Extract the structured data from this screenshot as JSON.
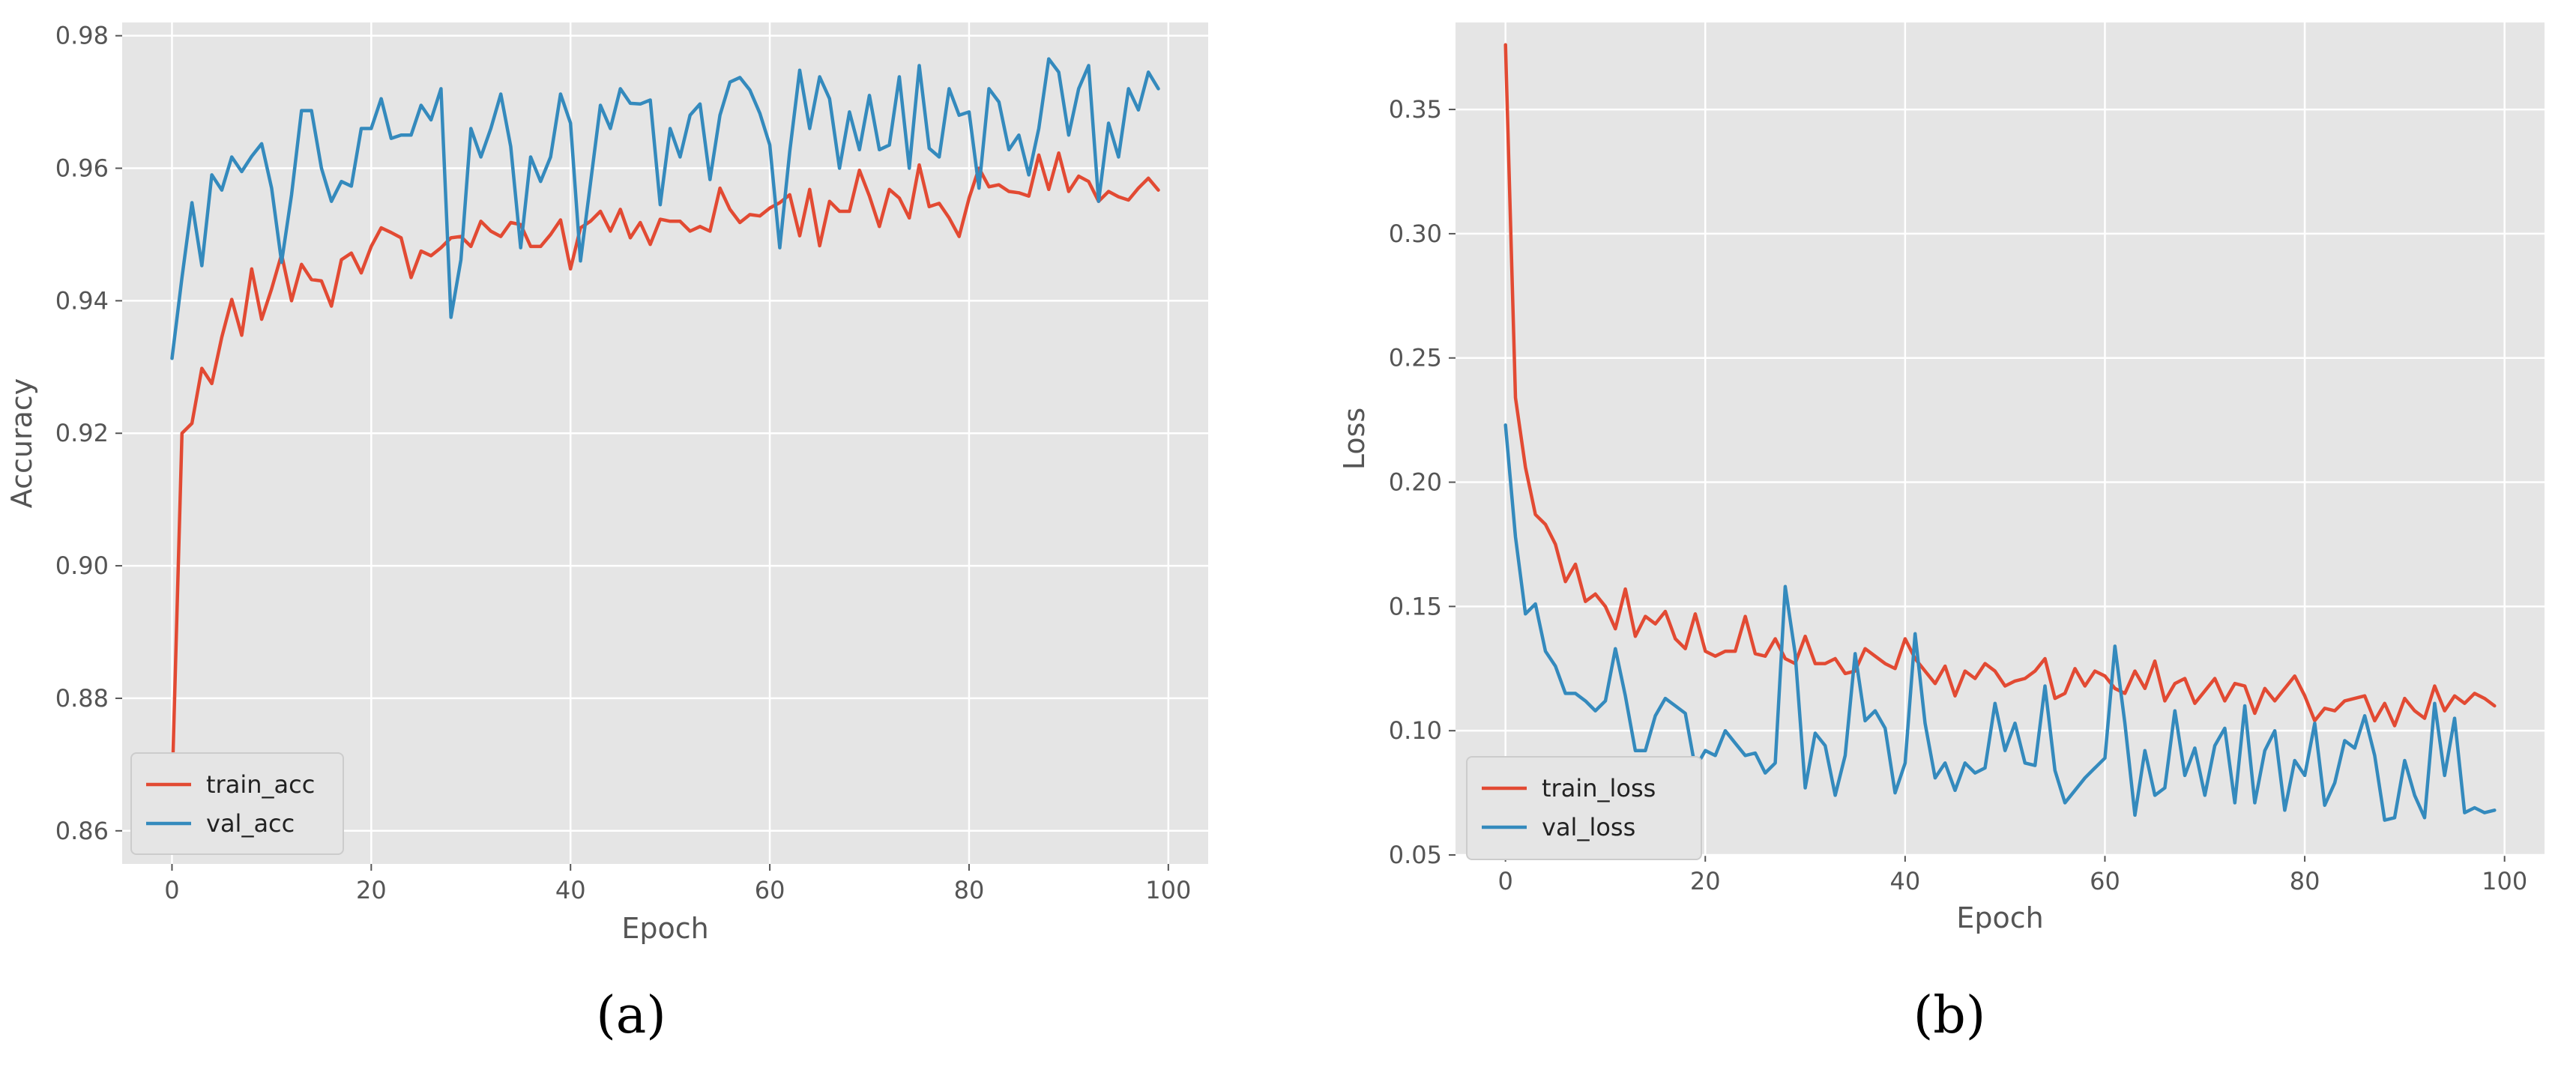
{
  "chart_data": [
    {
      "type": "line",
      "caption": "(a)",
      "xlabel": "Epoch",
      "ylabel": "Accuracy",
      "xlim": [
        -5,
        104
      ],
      "ylim": [
        0.855,
        0.982
      ],
      "xticks": [
        0,
        20,
        40,
        60,
        80,
        100
      ],
      "yticks": [
        0.86,
        0.88,
        0.9,
        0.92,
        0.94,
        0.96,
        0.98
      ],
      "ytick_labels": [
        "0.86",
        "0.88",
        "0.90",
        "0.92",
        "0.94",
        "0.96",
        "0.98"
      ],
      "grid": true,
      "legend_position": "lower-left",
      "x": [
        0,
        1,
        2,
        3,
        4,
        5,
        6,
        7,
        8,
        9,
        10,
        11,
        12,
        13,
        14,
        15,
        16,
        17,
        18,
        19,
        20,
        21,
        22,
        23,
        24,
        25,
        26,
        27,
        28,
        29,
        30,
        31,
        32,
        33,
        34,
        35,
        36,
        37,
        38,
        39,
        40,
        41,
        42,
        43,
        44,
        45,
        46,
        47,
        48,
        49,
        50,
        51,
        52,
        53,
        54,
        55,
        56,
        57,
        58,
        59,
        60,
        61,
        62,
        63,
        64,
        65,
        66,
        67,
        68,
        69,
        70,
        71,
        72,
        73,
        74,
        75,
        76,
        77,
        78,
        79,
        80,
        81,
        82,
        83,
        84,
        85,
        86,
        87,
        88,
        89,
        90,
        91,
        92,
        93,
        94,
        95,
        96,
        97,
        98,
        99
      ],
      "series": [
        {
          "name": "train_acc",
          "color": "#E24A33",
          "values": [
            0.866,
            0.92,
            0.9215,
            0.9298,
            0.9275,
            0.9345,
            0.9402,
            0.9348,
            0.9448,
            0.9372,
            0.9418,
            0.947,
            0.94,
            0.9455,
            0.9432,
            0.943,
            0.9392,
            0.9462,
            0.9472,
            0.9442,
            0.9482,
            0.951,
            0.9503,
            0.9495,
            0.9435,
            0.9475,
            0.9468,
            0.948,
            0.9495,
            0.9497,
            0.9482,
            0.952,
            0.9505,
            0.9497,
            0.9518,
            0.9515,
            0.9482,
            0.9482,
            0.95,
            0.9522,
            0.9448,
            0.951,
            0.952,
            0.9535,
            0.9505,
            0.9538,
            0.9495,
            0.9518,
            0.9485,
            0.9523,
            0.952,
            0.952,
            0.9505,
            0.9512,
            0.9505,
            0.957,
            0.9538,
            0.9518,
            0.953,
            0.9528,
            0.954,
            0.9548,
            0.956,
            0.9498,
            0.9568,
            0.9483,
            0.955,
            0.9535,
            0.9535,
            0.9597,
            0.9558,
            0.9512,
            0.9568,
            0.9555,
            0.9525,
            0.9605,
            0.9542,
            0.9547,
            0.9525,
            0.9497,
            0.9555,
            0.96,
            0.9572,
            0.9575,
            0.9565,
            0.9563,
            0.9558,
            0.962,
            0.9568,
            0.9623,
            0.9565,
            0.9588,
            0.958,
            0.955,
            0.9565,
            0.9557,
            0.9552,
            0.957,
            0.9585,
            0.9567
          ]
        },
        {
          "name": "val_acc",
          "color": "#348ABD",
          "values": [
            0.9313,
            0.9435,
            0.9548,
            0.9453,
            0.959,
            0.9567,
            0.9617,
            0.9595,
            0.9618,
            0.9637,
            0.957,
            0.9458,
            0.956,
            0.9687,
            0.9687,
            0.96,
            0.955,
            0.958,
            0.9573,
            0.966,
            0.966,
            0.9705,
            0.9645,
            0.965,
            0.965,
            0.9695,
            0.9673,
            0.972,
            0.9375,
            0.9462,
            0.966,
            0.9617,
            0.966,
            0.9712,
            0.9633,
            0.948,
            0.9617,
            0.958,
            0.9617,
            0.9712,
            0.9668,
            0.946,
            0.9577,
            0.9695,
            0.966,
            0.972,
            0.9698,
            0.9697,
            0.9703,
            0.9545,
            0.966,
            0.9617,
            0.968,
            0.9697,
            0.9583,
            0.968,
            0.973,
            0.9737,
            0.9718,
            0.9683,
            0.9635,
            0.948,
            0.9625,
            0.9748,
            0.966,
            0.9738,
            0.9705,
            0.96,
            0.9685,
            0.9628,
            0.971,
            0.9628,
            0.9635,
            0.9738,
            0.96,
            0.9755,
            0.963,
            0.9617,
            0.972,
            0.968,
            0.9685,
            0.957,
            0.972,
            0.97,
            0.9628,
            0.965,
            0.959,
            0.966,
            0.9765,
            0.9745,
            0.965,
            0.972,
            0.9755,
            0.955,
            0.9668,
            0.9617,
            0.972,
            0.9688,
            0.9745,
            0.972
          ]
        }
      ]
    },
    {
      "type": "line",
      "caption": "(b)",
      "xlabel": "Epoch",
      "ylabel": "Loss",
      "xlim": [
        -5,
        104
      ],
      "ylim": [
        0.05,
        0.385
      ],
      "xticks": [
        0,
        20,
        40,
        60,
        80,
        100
      ],
      "yticks": [
        0.05,
        0.1,
        0.15,
        0.2,
        0.25,
        0.3,
        0.35
      ],
      "ytick_labels": [
        "0.05",
        "0.10",
        "0.15",
        "0.20",
        "0.25",
        "0.30",
        "0.35"
      ],
      "grid": true,
      "legend_position": "lower-left",
      "x": [
        0,
        1,
        2,
        3,
        4,
        5,
        6,
        7,
        8,
        9,
        10,
        11,
        12,
        13,
        14,
        15,
        16,
        17,
        18,
        19,
        20,
        21,
        22,
        23,
        24,
        25,
        26,
        27,
        28,
        29,
        30,
        31,
        32,
        33,
        34,
        35,
        36,
        37,
        38,
        39,
        40,
        41,
        42,
        43,
        44,
        45,
        46,
        47,
        48,
        49,
        50,
        51,
        52,
        53,
        54,
        55,
        56,
        57,
        58,
        59,
        60,
        61,
        62,
        63,
        64,
        65,
        66,
        67,
        68,
        69,
        70,
        71,
        72,
        73,
        74,
        75,
        76,
        77,
        78,
        79,
        80,
        81,
        82,
        83,
        84,
        85,
        86,
        87,
        88,
        89,
        90,
        91,
        92,
        93,
        94,
        95,
        96,
        97,
        98,
        99
      ],
      "series": [
        {
          "name": "train_loss",
          "color": "#E24A33",
          "values": [
            0.376,
            0.234,
            0.206,
            0.187,
            0.183,
            0.175,
            0.16,
            0.167,
            0.152,
            0.155,
            0.15,
            0.141,
            0.157,
            0.138,
            0.146,
            0.143,
            0.148,
            0.137,
            0.133,
            0.147,
            0.132,
            0.13,
            0.132,
            0.132,
            0.146,
            0.131,
            0.13,
            0.137,
            0.129,
            0.127,
            0.138,
            0.127,
            0.127,
            0.129,
            0.123,
            0.124,
            0.133,
            0.13,
            0.127,
            0.125,
            0.137,
            0.129,
            0.124,
            0.119,
            0.126,
            0.114,
            0.124,
            0.121,
            0.127,
            0.124,
            0.118,
            0.12,
            0.121,
            0.124,
            0.129,
            0.113,
            0.115,
            0.125,
            0.118,
            0.124,
            0.122,
            0.117,
            0.115,
            0.124,
            0.117,
            0.128,
            0.112,
            0.119,
            0.121,
            0.111,
            0.116,
            0.121,
            0.112,
            0.119,
            0.118,
            0.107,
            0.117,
            0.112,
            0.117,
            0.122,
            0.114,
            0.104,
            0.109,
            0.108,
            0.112,
            0.113,
            0.114,
            0.104,
            0.111,
            0.102,
            0.113,
            0.108,
            0.105,
            0.118,
            0.108,
            0.114,
            0.111,
            0.115,
            0.113,
            0.11
          ]
        },
        {
          "name": "val_loss",
          "color": "#348ABD",
          "values": [
            0.223,
            0.178,
            0.147,
            0.151,
            0.132,
            0.126,
            0.115,
            0.115,
            0.112,
            0.108,
            0.112,
            0.133,
            0.114,
            0.092,
            0.092,
            0.106,
            0.113,
            0.11,
            0.107,
            0.085,
            0.092,
            0.09,
            0.1,
            0.095,
            0.09,
            0.091,
            0.083,
            0.087,
            0.158,
            0.131,
            0.077,
            0.099,
            0.094,
            0.074,
            0.09,
            0.131,
            0.104,
            0.108,
            0.101,
            0.075,
            0.087,
            0.139,
            0.103,
            0.081,
            0.087,
            0.076,
            0.087,
            0.083,
            0.085,
            0.111,
            0.092,
            0.103,
            0.087,
            0.086,
            0.118,
            0.084,
            0.071,
            0.076,
            0.081,
            0.085,
            0.089,
            0.134,
            0.103,
            0.066,
            0.092,
            0.074,
            0.077,
            0.108,
            0.082,
            0.093,
            0.074,
            0.094,
            0.101,
            0.071,
            0.11,
            0.071,
            0.092,
            0.1,
            0.068,
            0.088,
            0.082,
            0.103,
            0.07,
            0.079,
            0.096,
            0.093,
            0.106,
            0.09,
            0.064,
            0.065,
            0.088,
            0.074,
            0.065,
            0.111,
            0.082,
            0.105,
            0.067,
            0.069,
            0.067,
            0.068
          ]
        }
      ]
    }
  ]
}
